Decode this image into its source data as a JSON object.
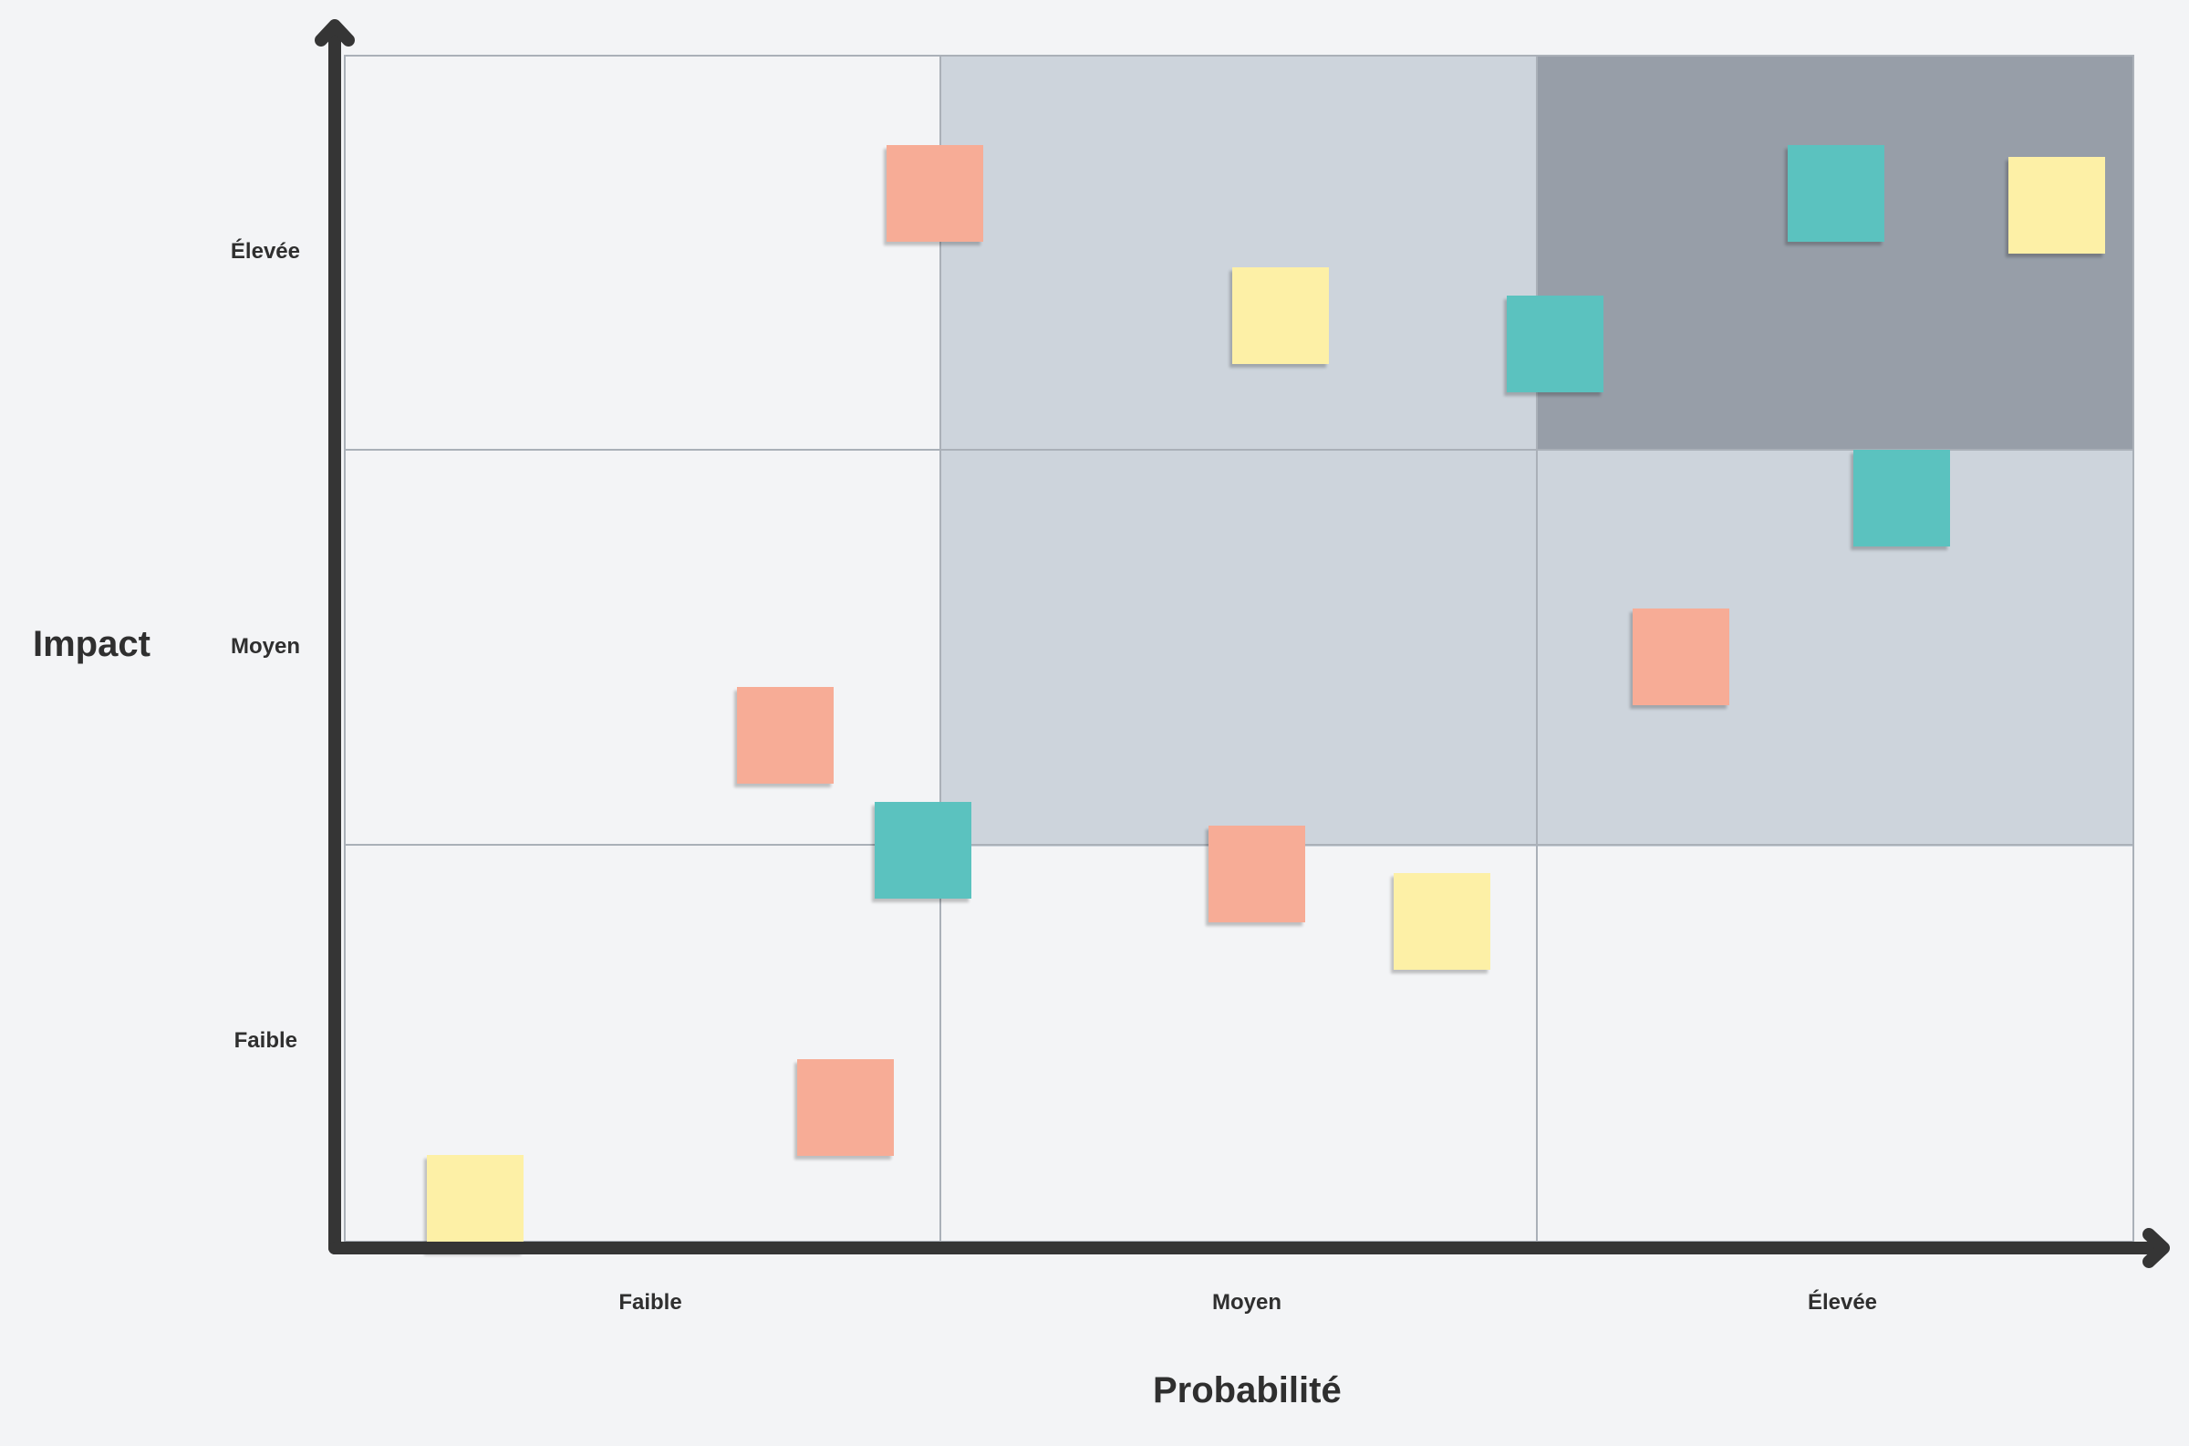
{
  "colors": {
    "background": "#f3f4f6",
    "zone_low": "#f3f4f6",
    "zone_medium": "#cdd4dc",
    "zone_high": "#979ea8",
    "axis": "#353535",
    "grid": "#aab0b8",
    "text": "#2f2f2f"
  },
  "y_axis": {
    "title": "Impact",
    "ticks": [
      "Élevée",
      "Moyen",
      "Faible"
    ]
  },
  "x_axis": {
    "title": "Probabilité",
    "ticks": [
      "Faible",
      "Moyen",
      "Élevée"
    ]
  },
  "matrix": {
    "rows": 3,
    "cols": 3,
    "zones": [
      [
        "low",
        "medium",
        "high"
      ],
      [
        "low",
        "medium",
        "medium"
      ],
      [
        "low",
        "low",
        "low"
      ]
    ]
  },
  "sticky_colors": {
    "salmon": "#f7ac96",
    "teal": "#5bc2bf",
    "yellow": "#fdf0a6"
  },
  "stickies": [
    {
      "color": "salmon",
      "probability": 0.99,
      "impact": 2.65
    },
    {
      "color": "yellow",
      "probability": 1.57,
      "impact": 2.34
    },
    {
      "color": "teal",
      "probability": 2.03,
      "impact": 2.27
    },
    {
      "color": "teal",
      "probability": 2.5,
      "impact": 2.65
    },
    {
      "color": "yellow",
      "probability": 2.87,
      "impact": 2.62
    },
    {
      "color": "teal",
      "probability": 2.61,
      "impact": 1.88
    },
    {
      "color": "salmon",
      "probability": 2.24,
      "impact": 1.48
    },
    {
      "color": "salmon",
      "probability": 0.74,
      "impact": 1.28
    },
    {
      "color": "teal",
      "probability": 0.97,
      "impact": 0.99
    },
    {
      "color": "salmon",
      "probability": 1.53,
      "impact": 0.93
    },
    {
      "color": "yellow",
      "probability": 1.84,
      "impact": 0.81
    },
    {
      "color": "salmon",
      "probability": 0.84,
      "impact": 0.34
    },
    {
      "color": "yellow",
      "probability": 0.22,
      "impact": 0.1
    }
  ]
}
